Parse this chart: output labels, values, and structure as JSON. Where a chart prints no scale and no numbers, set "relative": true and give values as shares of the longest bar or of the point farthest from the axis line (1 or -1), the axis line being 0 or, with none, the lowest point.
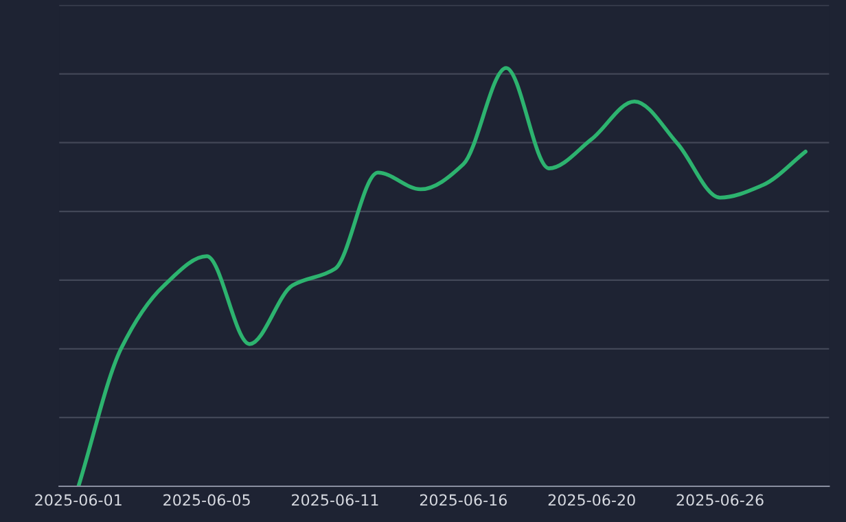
{
  "chart_data": {
    "type": "line",
    "relative": true,
    "grid": "y",
    "marker": "none",
    "line_style": "solid",
    "categories": [
      "2025-06-01",
      null,
      null,
      "2025-06-05",
      null,
      null,
      "2025-06-11",
      null,
      null,
      "2025-06-16",
      null,
      null,
      "2025-06-20",
      null,
      null,
      "2025-06-26",
      null,
      null
    ],
    "series": [
      {
        "color": "#2db36f",
        "values": [
          0,
          0.33,
          0.48,
          0.55,
          0.34,
          0.48,
          0.52,
          0.75,
          0.71,
          0.77,
          1,
          0.76,
          0.83,
          0.92,
          0.82,
          0.69,
          0.72,
          0.8
        ]
      }
    ]
  }
}
